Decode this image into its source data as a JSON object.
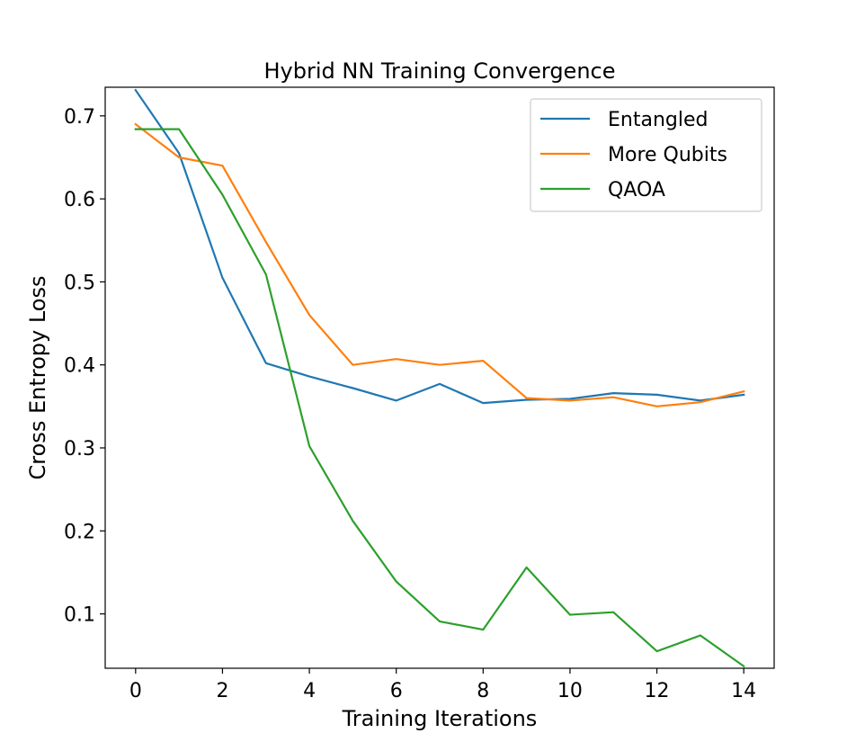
{
  "chart_data": {
    "type": "line",
    "title": "Hybrid NN Training Convergence",
    "xlabel": "Training Iterations",
    "ylabel": "Cross Entropy Loss",
    "xlim": [
      -0.7,
      14.7
    ],
    "ylim": [
      0.0345,
      0.7345
    ],
    "xticks": [
      0,
      2,
      4,
      6,
      8,
      10,
      12,
      14
    ],
    "yticks": [
      0.1,
      0.2,
      0.3,
      0.4,
      0.5,
      0.6,
      0.7
    ],
    "x": [
      0,
      1,
      2,
      3,
      4,
      5,
      6,
      7,
      8,
      9,
      10,
      11,
      12,
      13,
      14
    ],
    "grid": false,
    "legend_position": "top-right",
    "series": [
      {
        "name": "Entangled",
        "color": "#1f77b4",
        "values": [
          0.731,
          0.655,
          0.505,
          0.402,
          0.386,
          0.372,
          0.357,
          0.377,
          0.354,
          0.358,
          0.359,
          0.366,
          0.364,
          0.357,
          0.364
        ]
      },
      {
        "name": "More Qubits",
        "color": "#ff7f0e",
        "values": [
          0.69,
          0.65,
          0.64,
          0.548,
          0.46,
          0.4,
          0.407,
          0.4,
          0.405,
          0.36,
          0.357,
          0.361,
          0.35,
          0.355,
          0.368
        ]
      },
      {
        "name": "QAOA",
        "color": "#2ca02c",
        "values": [
          0.684,
          0.684,
          0.605,
          0.509,
          0.302,
          0.212,
          0.139,
          0.091,
          0.081,
          0.156,
          0.099,
          0.102,
          0.055,
          0.074,
          0.037
        ]
      }
    ]
  }
}
